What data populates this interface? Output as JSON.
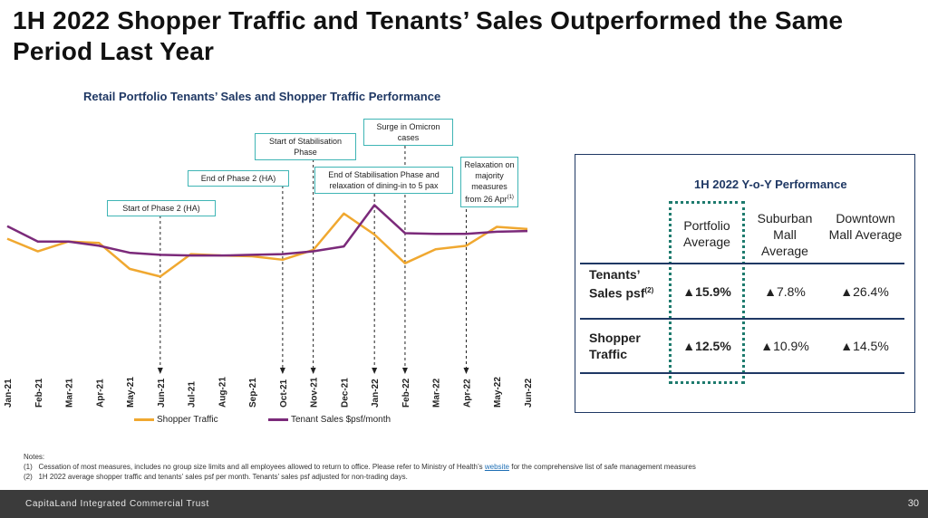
{
  "title": "1H 2022 Shopper Traffic and Tenants’ Sales Outperformed the Same Period Last Year",
  "chart_data": {
    "type": "line",
    "title": "Retail Portfolio Tenants’ Sales and Shopper Traffic Performance",
    "categories": [
      "Jan-21",
      "Feb-21",
      "Mar-21",
      "Apr-21",
      "May-21",
      "Jun-21",
      "Jul-21",
      "Aug-21",
      "Sep-21",
      "Oct-21",
      "Nov-21",
      "Dec-21",
      "Jan-22",
      "Feb-22",
      "Mar-22",
      "Apr-22",
      "May-22",
      "Jun-22"
    ],
    "series": [
      {
        "name": "Shopper Traffic",
        "color": "#f0a830",
        "values": [
          50,
          32,
          46,
          44,
          7,
          -4,
          28,
          26,
          25,
          20,
          34,
          86,
          56,
          15,
          35,
          40,
          67,
          64
        ]
      },
      {
        "name": "Tenant Sales $psf/month",
        "color": "#7b2a7a",
        "values": [
          68,
          46,
          46,
          40,
          30,
          27,
          26,
          26,
          27,
          28,
          32,
          39,
          98,
          58,
          57,
          57,
          60,
          61
        ]
      }
    ],
    "grid": false,
    "legend": "bottom",
    "annotations": [
      {
        "label": "Start of Phase 2 (HA)",
        "category": "Jun-21"
      },
      {
        "label": "End of Phase 2 (HA)",
        "category": "Oct-21"
      },
      {
        "label": "Start of Stabilisation Phase",
        "category": "Nov-21"
      },
      {
        "label": "End of Stabilisation Phase and relaxation of dining-in to 5 pax",
        "category": "Jan-22"
      },
      {
        "label": "Surge in Omicron cases",
        "category": "Feb-22"
      },
      {
        "label": "Relaxation on majority measures from 26 Apr",
        "sup": "(1)",
        "category": "Apr-22"
      }
    ]
  },
  "legend": {
    "shopper": "Shopper Traffic",
    "tenant": "Tenant Sales $psf/month"
  },
  "table": {
    "title": "1H 2022 Y-o-Y Performance",
    "columns": [
      "Portfolio Average",
      "Suburban Mall Average",
      "Downtown Mall Average"
    ],
    "rows": [
      {
        "label": "Tenants’ Sales psf",
        "sup": "(2)",
        "values": [
          "▲15.9%",
          "▲7.8%",
          "▲26.4%"
        ]
      },
      {
        "label": "Shopper Traffic",
        "values": [
          "▲12.5%",
          "▲10.9%",
          "▲14.5%"
        ]
      }
    ]
  },
  "notes": {
    "heading": "Notes:",
    "n1_num": "(1)",
    "n1_a": "Cessation of most measures, includes no group size limits and all employees allowed to return to office. Please refer to Ministry of Health’s",
    "n1_link": "website",
    "n1_b": "for the comprehensive list of safe management measures",
    "n2_num": "(2)",
    "n2": "1H 2022 average shopper traffic and tenants’ sales psf per month. Tenants’ sales psf adjusted for non-trading days."
  },
  "footer": {
    "company": "CapitaLand Integrated Commercial Trust",
    "page": "30"
  }
}
